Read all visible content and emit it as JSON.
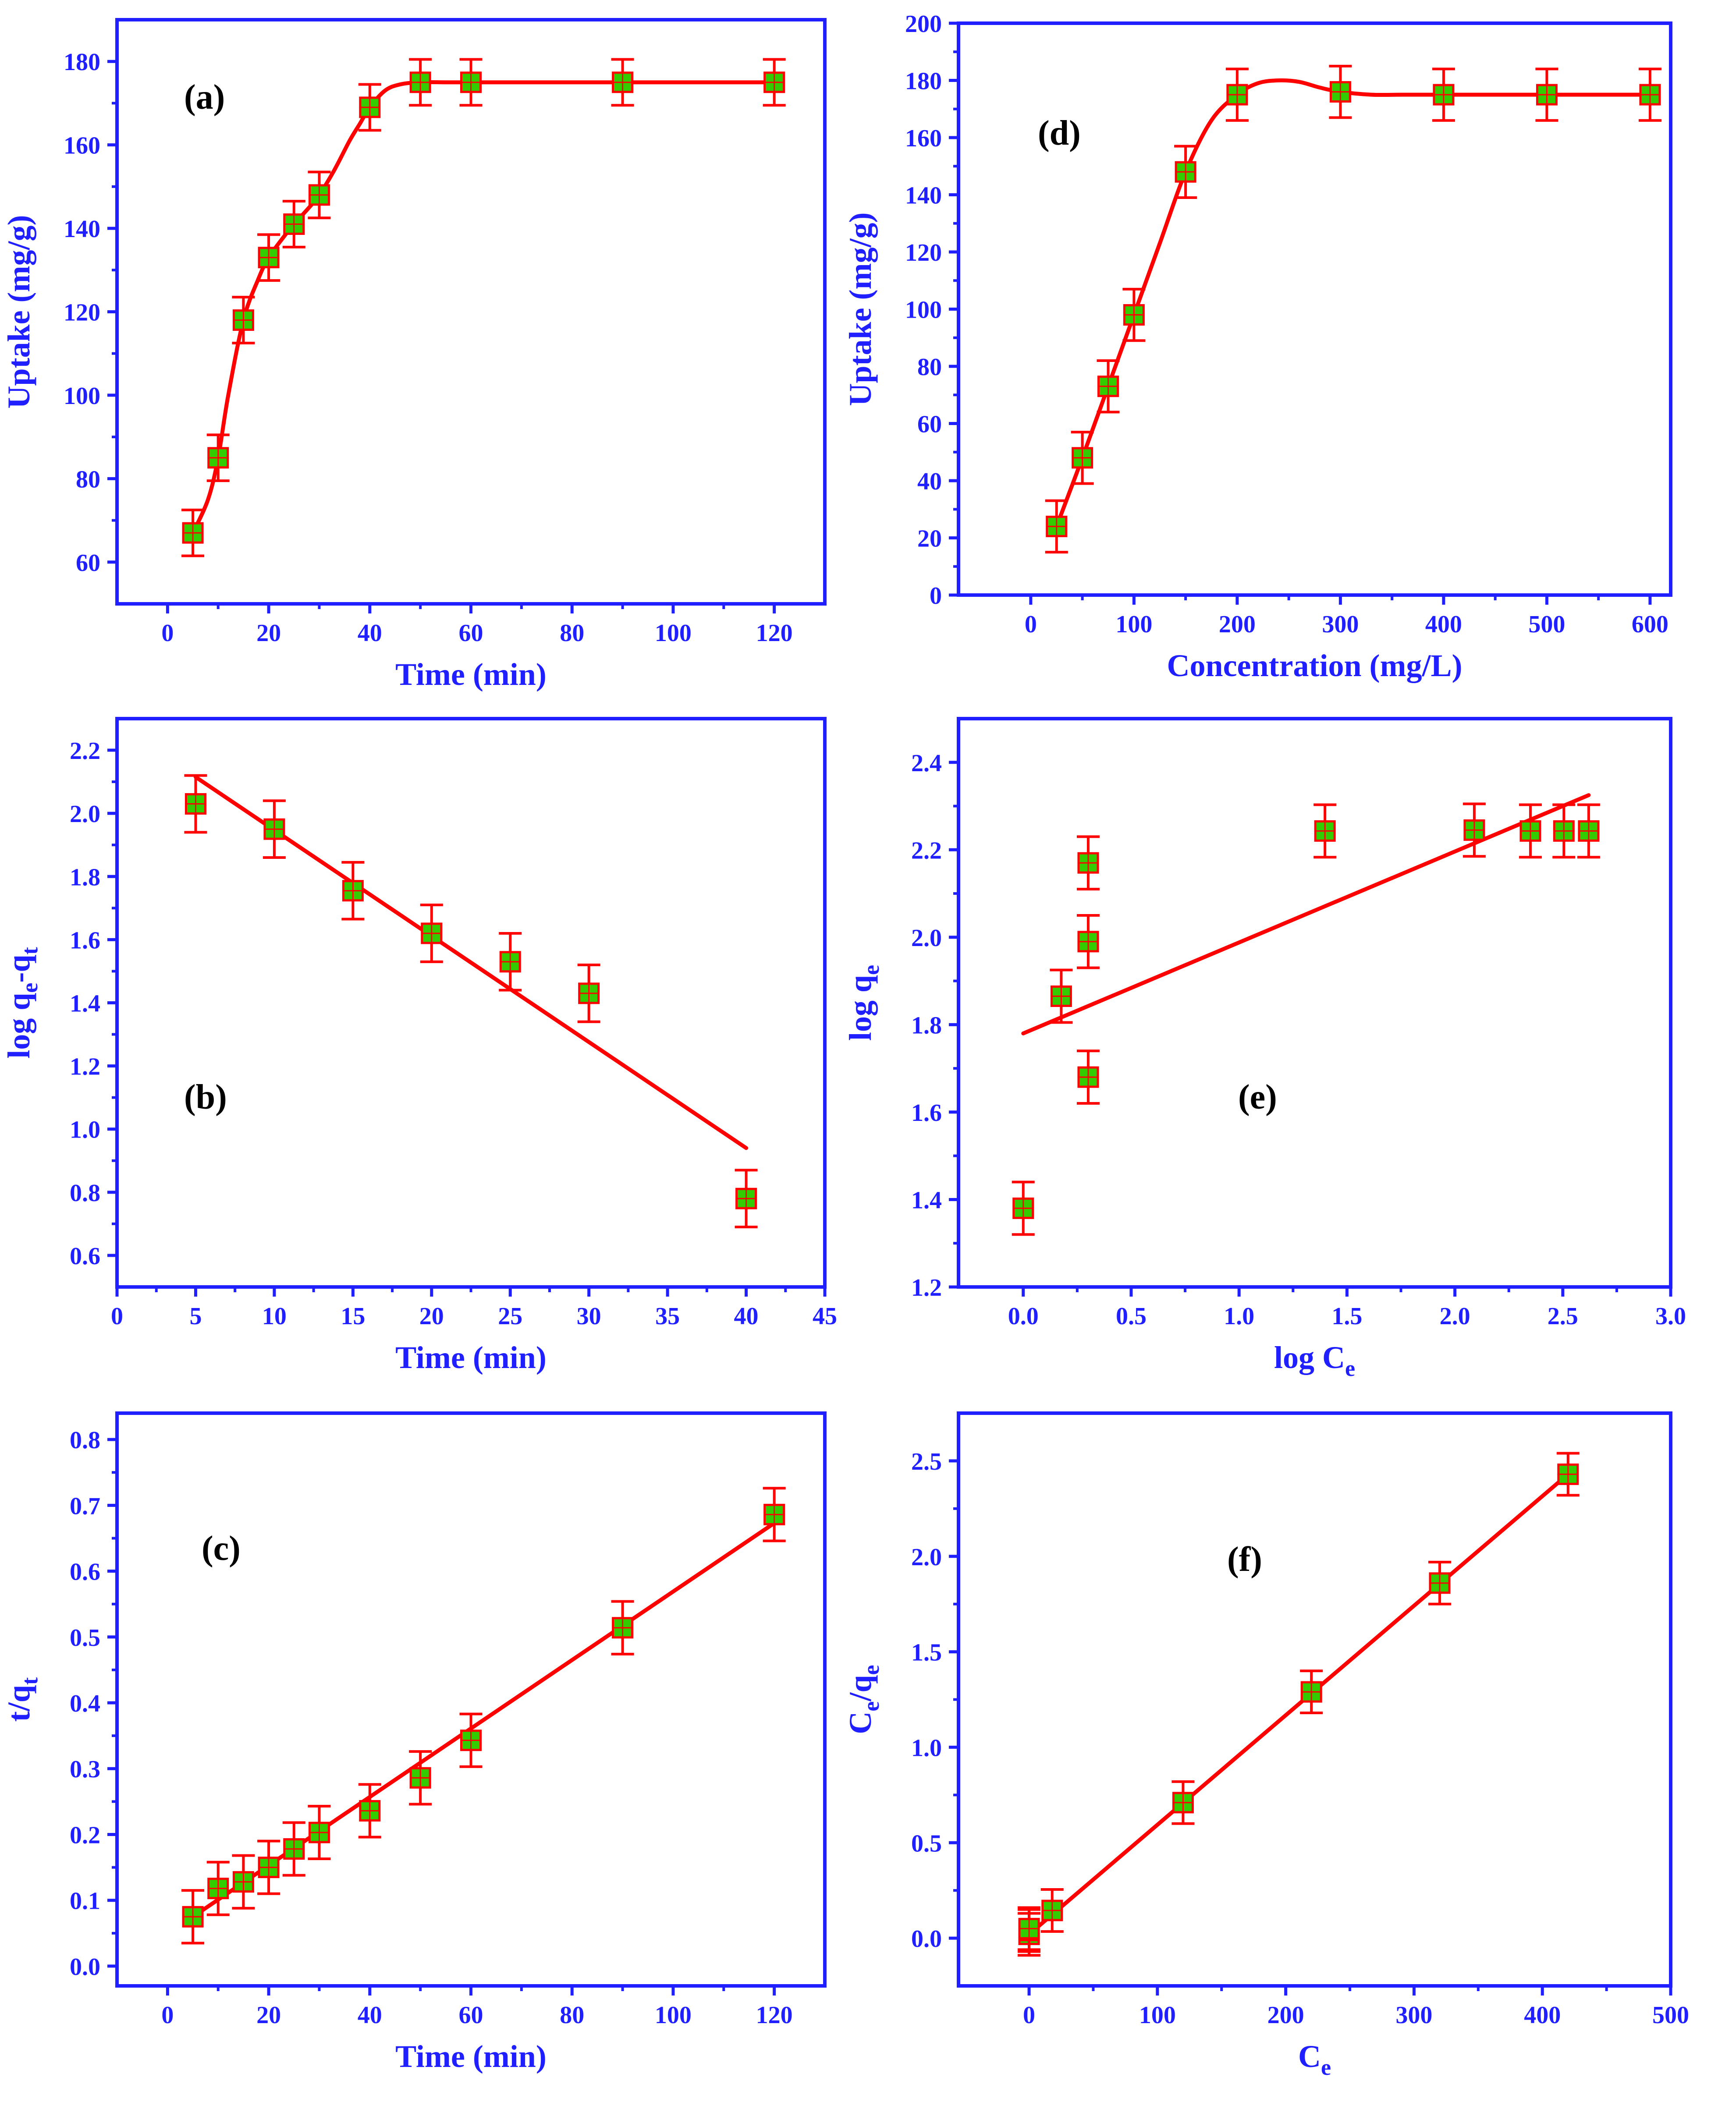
{
  "colors": {
    "axis": "#1f1fff",
    "fit_line": "#ff0000",
    "error_bar": "#ff0000",
    "marker_fill": "#33cc00",
    "marker_edge": "#ff0000",
    "panel_label": "#000000"
  },
  "chart_data": [
    {
      "id": "a",
      "type": "scatter",
      "panel_label": "(a)",
      "title": "",
      "xlabel": "Time (min)",
      "ylabel": "Uptake (mg/g)",
      "xlim": [
        -10,
        130
      ],
      "ylim": [
        50,
        190
      ],
      "xticks": [
        0,
        20,
        40,
        60,
        80,
        100,
        120
      ],
      "yticks": [
        60,
        80,
        100,
        120,
        140,
        160,
        180
      ],
      "xtick_labels": [
        "0",
        "20",
        "40",
        "60",
        "80",
        "100",
        "120"
      ],
      "ytick_labels": [
        "60",
        "80",
        "100",
        "120",
        "140",
        "160",
        "180"
      ],
      "series": [
        {
          "name": "data",
          "x": [
            5,
            10,
            15,
            20,
            25,
            30,
            40,
            50,
            60,
            90,
            120
          ],
          "y": [
            67,
            85,
            118,
            133,
            141,
            148,
            169,
            175,
            175,
            175,
            175
          ],
          "err": [
            5.5,
            5.5,
            5.5,
            5.5,
            5.5,
            5.5,
            5.5,
            5.5,
            5.5,
            5.5,
            5.5
          ]
        }
      ],
      "fit": {
        "kind": "smooth",
        "x": [
          5,
          8,
          10,
          12,
          15,
          18,
          20,
          23,
          25,
          28,
          30,
          33,
          36,
          38,
          40,
          43,
          46,
          50,
          55,
          60,
          90,
          120
        ],
        "y": [
          67,
          75,
          85,
          100,
          118,
          128,
          133,
          138,
          141,
          145,
          148,
          154,
          161,
          165,
          169,
          173,
          174.5,
          175,
          175,
          175,
          175,
          175
        ]
      }
    },
    {
      "id": "d",
      "type": "scatter",
      "panel_label": "(d)",
      "title": "",
      "xlabel": "Concentration (mg/L)",
      "ylabel": "Uptake (mg/g)",
      "x_categories": [
        "0",
        "100",
        "200",
        "300",
        "400",
        "500",
        "600"
      ],
      "xlim": [
        -0.7,
        6.2
      ],
      "ylim": [
        0,
        200
      ],
      "yticks": [
        0,
        20,
        40,
        60,
        80,
        100,
        120,
        140,
        160,
        180,
        200
      ],
      "ytick_labels": [
        "0",
        "20",
        "40",
        "60",
        "80",
        "100",
        "120",
        "140",
        "160",
        "180",
        "200"
      ],
      "series": [
        {
          "name": "data",
          "x_values": [
            25,
            50,
            75,
            100,
            150,
            200,
            300,
            400,
            500,
            600
          ],
          "x": [
            0.25,
            0.5,
            0.75,
            1.0,
            1.5,
            2.0,
            3.0,
            4.0,
            5.0,
            6.0
          ],
          "y": [
            24,
            48,
            73,
            98,
            148,
            175,
            176,
            175,
            175,
            175
          ],
          "err": [
            9,
            9,
            9,
            9,
            9,
            9,
            9,
            9,
            9,
            9
          ]
        }
      ],
      "fit": {
        "kind": "smooth",
        "x": [
          0.25,
          0.5,
          0.75,
          1.0,
          1.25,
          1.5,
          1.75,
          2.0,
          2.2,
          2.4,
          2.6,
          2.8,
          3.0,
          3.3,
          3.6,
          4.0,
          5.0,
          6.0
        ],
        "y": [
          24,
          48,
          73,
          98,
          123,
          148,
          166,
          175,
          179,
          180,
          179.5,
          177.5,
          176,
          175,
          175,
          175,
          175,
          175
        ]
      }
    },
    {
      "id": "b",
      "type": "scatter",
      "panel_label": "(b)",
      "title": "",
      "xlabel": "Time (min)",
      "ylabel_main": "log q",
      "ylabel_sub1": "e",
      "ylabel_mid": "-q",
      "ylabel_sub2": "t",
      "xlim": [
        0,
        45
      ],
      "ylim": [
        0.5,
        2.3
      ],
      "xticks": [
        0,
        5,
        10,
        15,
        20,
        25,
        30,
        35,
        40,
        45
      ],
      "yticks": [
        0.6,
        0.8,
        1.0,
        1.2,
        1.4,
        1.6,
        1.8,
        2.0,
        2.2
      ],
      "xtick_labels": [
        "0",
        "5",
        "10",
        "15",
        "20",
        "25",
        "30",
        "35",
        "40",
        "45"
      ],
      "ytick_labels": [
        "0.6",
        "0.8",
        "1.0",
        "1.2",
        "1.4",
        "1.6",
        "1.8",
        "2.0",
        "2.2"
      ],
      "series": [
        {
          "name": "data",
          "x": [
            5,
            10,
            15,
            20,
            25,
            30,
            40
          ],
          "y": [
            2.03,
            1.95,
            1.755,
            1.62,
            1.53,
            1.43,
            0.78
          ],
          "err": [
            0.09,
            0.09,
            0.09,
            0.09,
            0.09,
            0.09,
            0.09
          ]
        }
      ],
      "fit": {
        "kind": "line",
        "x": [
          5,
          40
        ],
        "y": [
          2.115,
          0.94
        ]
      }
    },
    {
      "id": "e",
      "type": "scatter",
      "panel_label": "(e)",
      "title": "",
      "xlabel_main": "log C",
      "xlabel_sub": "e",
      "ylabel_main": "log q",
      "ylabel_sub": "e",
      "xlim": [
        -0.3,
        3.0
      ],
      "ylim": [
        1.2,
        2.5
      ],
      "xticks": [
        0.0,
        0.5,
        1.0,
        1.5,
        2.0,
        2.5,
        3.0
      ],
      "yticks": [
        1.2,
        1.4,
        1.6,
        1.8,
        2.0,
        2.2,
        2.4
      ],
      "xtick_labels": [
        "0.0",
        "0.5",
        "1.0",
        "1.5",
        "2.0",
        "2.5",
        "3.0"
      ],
      "ytick_labels": [
        "1.2",
        "1.4",
        "1.6",
        "1.8",
        "2.0",
        "2.2",
        "2.4"
      ],
      "series": [
        {
          "name": "data",
          "x": [
            0.0,
            0.176,
            0.301,
            0.301,
            0.301,
            1.398,
            2.09,
            2.35,
            2.505,
            2.62
          ],
          "y": [
            1.38,
            1.865,
            1.68,
            1.99,
            2.17,
            2.243,
            2.245,
            2.243,
            2.243,
            2.243
          ],
          "err": [
            0.06,
            0.06,
            0.06,
            0.06,
            0.06,
            0.06,
            0.06,
            0.06,
            0.06,
            0.06
          ]
        }
      ],
      "fit": {
        "kind": "line",
        "x": [
          0.0,
          2.62
        ],
        "y": [
          1.78,
          2.325
        ]
      }
    },
    {
      "id": "c",
      "type": "scatter",
      "panel_label": "(c)",
      "title": "",
      "xlabel": "Time (min)",
      "ylabel_main": "t/q",
      "ylabel_sub": "t",
      "xlim": [
        -10,
        130
      ],
      "ylim": [
        -0.03,
        0.84
      ],
      "xticks": [
        0,
        20,
        40,
        60,
        80,
        100,
        120
      ],
      "yticks": [
        0.0,
        0.1,
        0.2,
        0.3,
        0.4,
        0.5,
        0.6,
        0.7,
        0.8
      ],
      "xtick_labels": [
        "0",
        "20",
        "40",
        "60",
        "80",
        "100",
        "120"
      ],
      "ytick_labels": [
        "0.0",
        "0.1",
        "0.2",
        "0.3",
        "0.4",
        "0.5",
        "0.6",
        "0.7",
        "0.8"
      ],
      "series": [
        {
          "name": "data",
          "x": [
            5,
            10,
            15,
            20,
            25,
            30,
            40,
            50,
            60,
            90,
            120
          ],
          "y": [
            0.075,
            0.118,
            0.128,
            0.15,
            0.178,
            0.203,
            0.236,
            0.286,
            0.343,
            0.514,
            0.686
          ],
          "err": [
            0.04,
            0.04,
            0.04,
            0.04,
            0.04,
            0.04,
            0.04,
            0.04,
            0.04,
            0.04,
            0.04
          ]
        }
      ],
      "fit": {
        "kind": "line",
        "x": [
          5,
          120
        ],
        "y": [
          0.075,
          0.673
        ]
      }
    },
    {
      "id": "f",
      "type": "scatter",
      "panel_label": "(f)",
      "title": "",
      "xlabel_main": "C",
      "xlabel_sub": "e",
      "ylabel_main": "C",
      "ylabel_sub1": "e",
      "ylabel_mid": "/q",
      "ylabel_sub2": "e",
      "xlim": [
        -55,
        500
      ],
      "ylim": [
        -0.25,
        2.75
      ],
      "xticks": [
        0,
        100,
        200,
        300,
        400,
        500
      ],
      "yticks": [
        0.0,
        0.5,
        1.0,
        1.5,
        2.0,
        2.5
      ],
      "xtick_labels": [
        "0",
        "100",
        "200",
        "300",
        "400",
        "500"
      ],
      "ytick_labels": [
        "0.0",
        "0.5",
        "1.0",
        "1.5",
        "2.0",
        "2.5"
      ],
      "series": [
        {
          "name": "data",
          "x": [
            0,
            0,
            0,
            18,
            120,
            220,
            320,
            420
          ],
          "y": [
            0.02,
            0.04,
            0.05,
            0.145,
            0.71,
            1.29,
            1.86,
            2.43
          ],
          "err": [
            0.11,
            0.11,
            0.11,
            0.11,
            0.11,
            0.11,
            0.11,
            0.11
          ]
        }
      ],
      "fit": {
        "kind": "line",
        "x": [
          0,
          420
        ],
        "y": [
          0.02,
          2.43
        ]
      }
    }
  ]
}
